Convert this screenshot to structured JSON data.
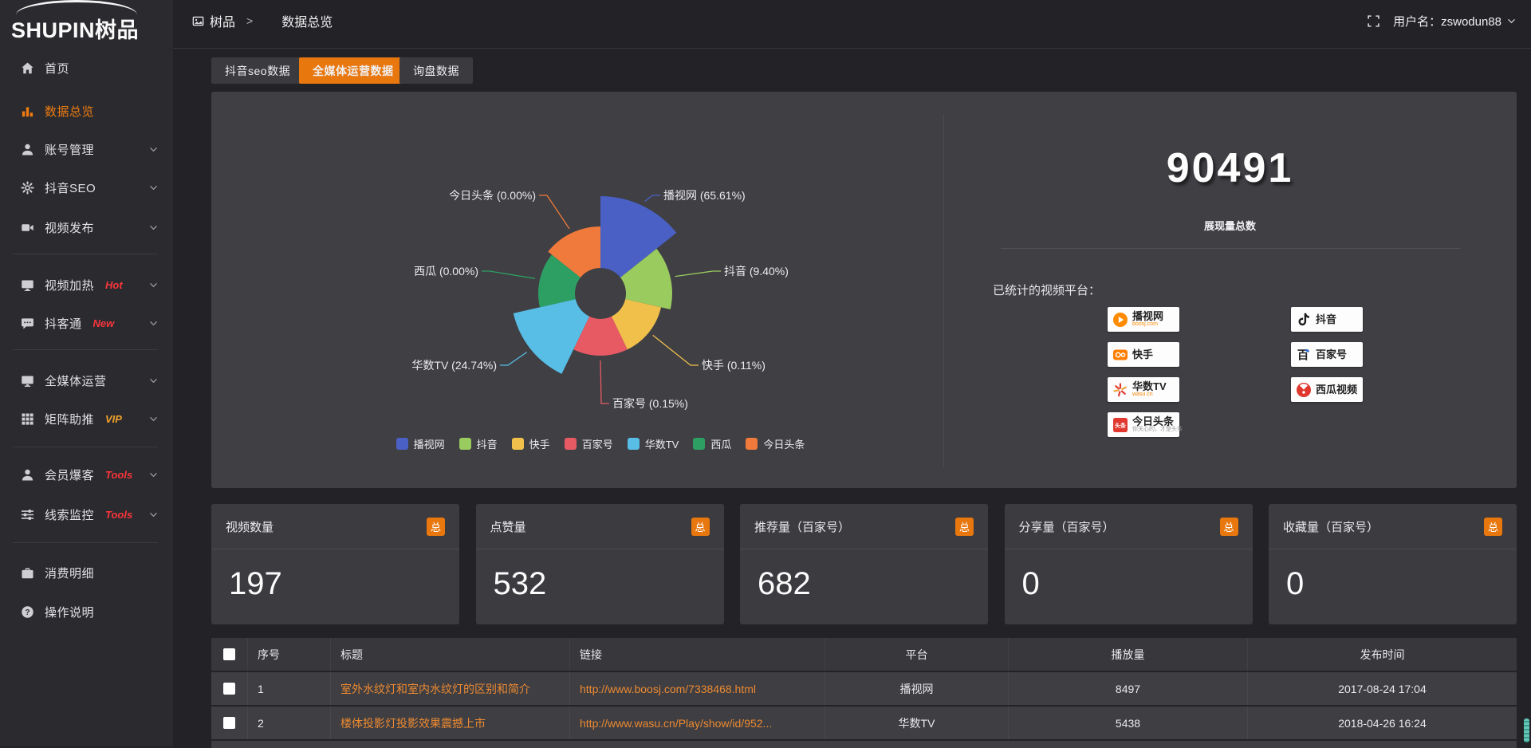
{
  "topbar": {
    "logo": {
      "text": "SHUPIN",
      "suffix": "树品"
    },
    "breadcrumb": {
      "root": "树品",
      "sep": ">",
      "current": "数据总览"
    },
    "user_label": "用户名：zswodun88"
  },
  "sidebar": {
    "items": [
      {
        "label": "首页",
        "icon": "home"
      },
      {
        "label": "数据总览",
        "icon": "chart",
        "active": true
      },
      {
        "label": "账号管理",
        "icon": "user",
        "chevron": true
      },
      {
        "label": "抖音SEO",
        "icon": "gear",
        "chevron": true
      },
      {
        "label": "视频发布",
        "icon": "video",
        "chevron": true,
        "divider_after": true
      },
      {
        "label": "视频加热",
        "icon": "screen",
        "badge": "Hot",
        "badge_color": "#f8353b",
        "chevron": true
      },
      {
        "label": "抖客通",
        "icon": "chat",
        "badge": "New",
        "badge_color": "#f8353b",
        "chevron": true,
        "divider_after": true
      },
      {
        "label": "全媒体运营",
        "icon": "screen",
        "chevron": true
      },
      {
        "label": "矩阵助推",
        "icon": "grid",
        "badge": "VIP",
        "badge_color": "#f0a02a",
        "chevron": true,
        "divider_after": true
      },
      {
        "label": "会员爆客",
        "icon": "user",
        "badge": "Tools",
        "badge_color": "#f8353b",
        "chevron": true
      },
      {
        "label": "线索监控",
        "icon": "sliders",
        "badge": "Tools",
        "badge_color": "#f8353b",
        "chevron": true,
        "divider_after": true
      },
      {
        "label": "消费明细",
        "icon": "wallet"
      },
      {
        "label": "操作说明",
        "icon": "question"
      }
    ]
  },
  "tabs": [
    {
      "label": "抖音seo数据",
      "active": false
    },
    {
      "label": "全媒体运营数据",
      "active": true
    },
    {
      "label": "询盘数据",
      "active": false
    }
  ],
  "chart_data": {
    "type": "pie",
    "variant": "nightingale-rose",
    "items": [
      {
        "name": "播视网",
        "percent": 65.61,
        "label": "播视网 (65.61%)",
        "color": "#4A60C5"
      },
      {
        "name": "抖音",
        "percent": 9.4,
        "label": "抖音 (9.40%)",
        "color": "#9ACB5F"
      },
      {
        "name": "快手",
        "percent": 0.11,
        "label": "快手 (0.11%)",
        "color": "#F0C04A"
      },
      {
        "name": "百家号",
        "percent": 0.15,
        "label": "百家号 (0.15%)",
        "color": "#E75A64"
      },
      {
        "name": "华数TV",
        "percent": 24.74,
        "label": "华数TV (24.74%)",
        "color": "#58BEE6"
      },
      {
        "name": "西瓜",
        "percent": 0.0,
        "label": "西瓜 (0.00%)",
        "color": "#2E9F63"
      },
      {
        "name": "今日头条",
        "percent": 0.0,
        "label": "今日头条 (0.00%)",
        "color": "#F07A3B"
      }
    ],
    "legend": [
      "播视网",
      "抖音",
      "快手",
      "百家号",
      "华数TV",
      "西瓜",
      "今日头条"
    ],
    "legend_position": "bottom"
  },
  "summary": {
    "total": "90491",
    "total_label": "展现量总数",
    "platforms_label": "已统计的视频平台：",
    "platform_badges": [
      {
        "name": "播视网",
        "sub": "boosj.com",
        "sub_color": "#ff8a00",
        "icon": "boosj"
      },
      {
        "name": "抖音",
        "icon": "douyin"
      },
      {
        "name": "快手",
        "icon": "kuaishou"
      },
      {
        "name": "百家号",
        "icon": "baijia"
      },
      {
        "name": "华数TV",
        "sub": "wasu.cn",
        "sub_color": "#f08200",
        "icon": "wasu"
      },
      {
        "name": "西瓜视频",
        "icon": "xigua"
      },
      {
        "name": "今日头条",
        "sub": "你关心的，才是头条",
        "sub_color": "#999999",
        "icon": "toutiao"
      }
    ]
  },
  "stat_cards": [
    {
      "label": "视频数量",
      "badge": "总",
      "value": "197"
    },
    {
      "label": "点赞量",
      "badge": "总",
      "value": "532"
    },
    {
      "label": "推荐量（百家号）",
      "badge": "总",
      "value": "682"
    },
    {
      "label": "分享量（百家号）",
      "badge": "总",
      "value": "0"
    },
    {
      "label": "收藏量（百家号）",
      "badge": "总",
      "value": "0"
    }
  ],
  "table": {
    "headers": [
      "序号",
      "标题",
      "链接",
      "平台",
      "播放量",
      "发布时间"
    ],
    "rows": [
      {
        "seq": "1",
        "title": "室外水纹灯和室内水纹灯的区别和简介",
        "link": "http://www.boosj.com/7338468.html",
        "platform": "播视网",
        "plays": "8497",
        "time": "2017-08-24 17:04"
      },
      {
        "seq": "2",
        "title": "楼体投影灯投影效果震撼上市",
        "link": "http://www.wasu.cn/Play/show/id/952...",
        "platform": "华数TV",
        "plays": "5438",
        "time": "2018-04-26 16:24"
      }
    ]
  }
}
